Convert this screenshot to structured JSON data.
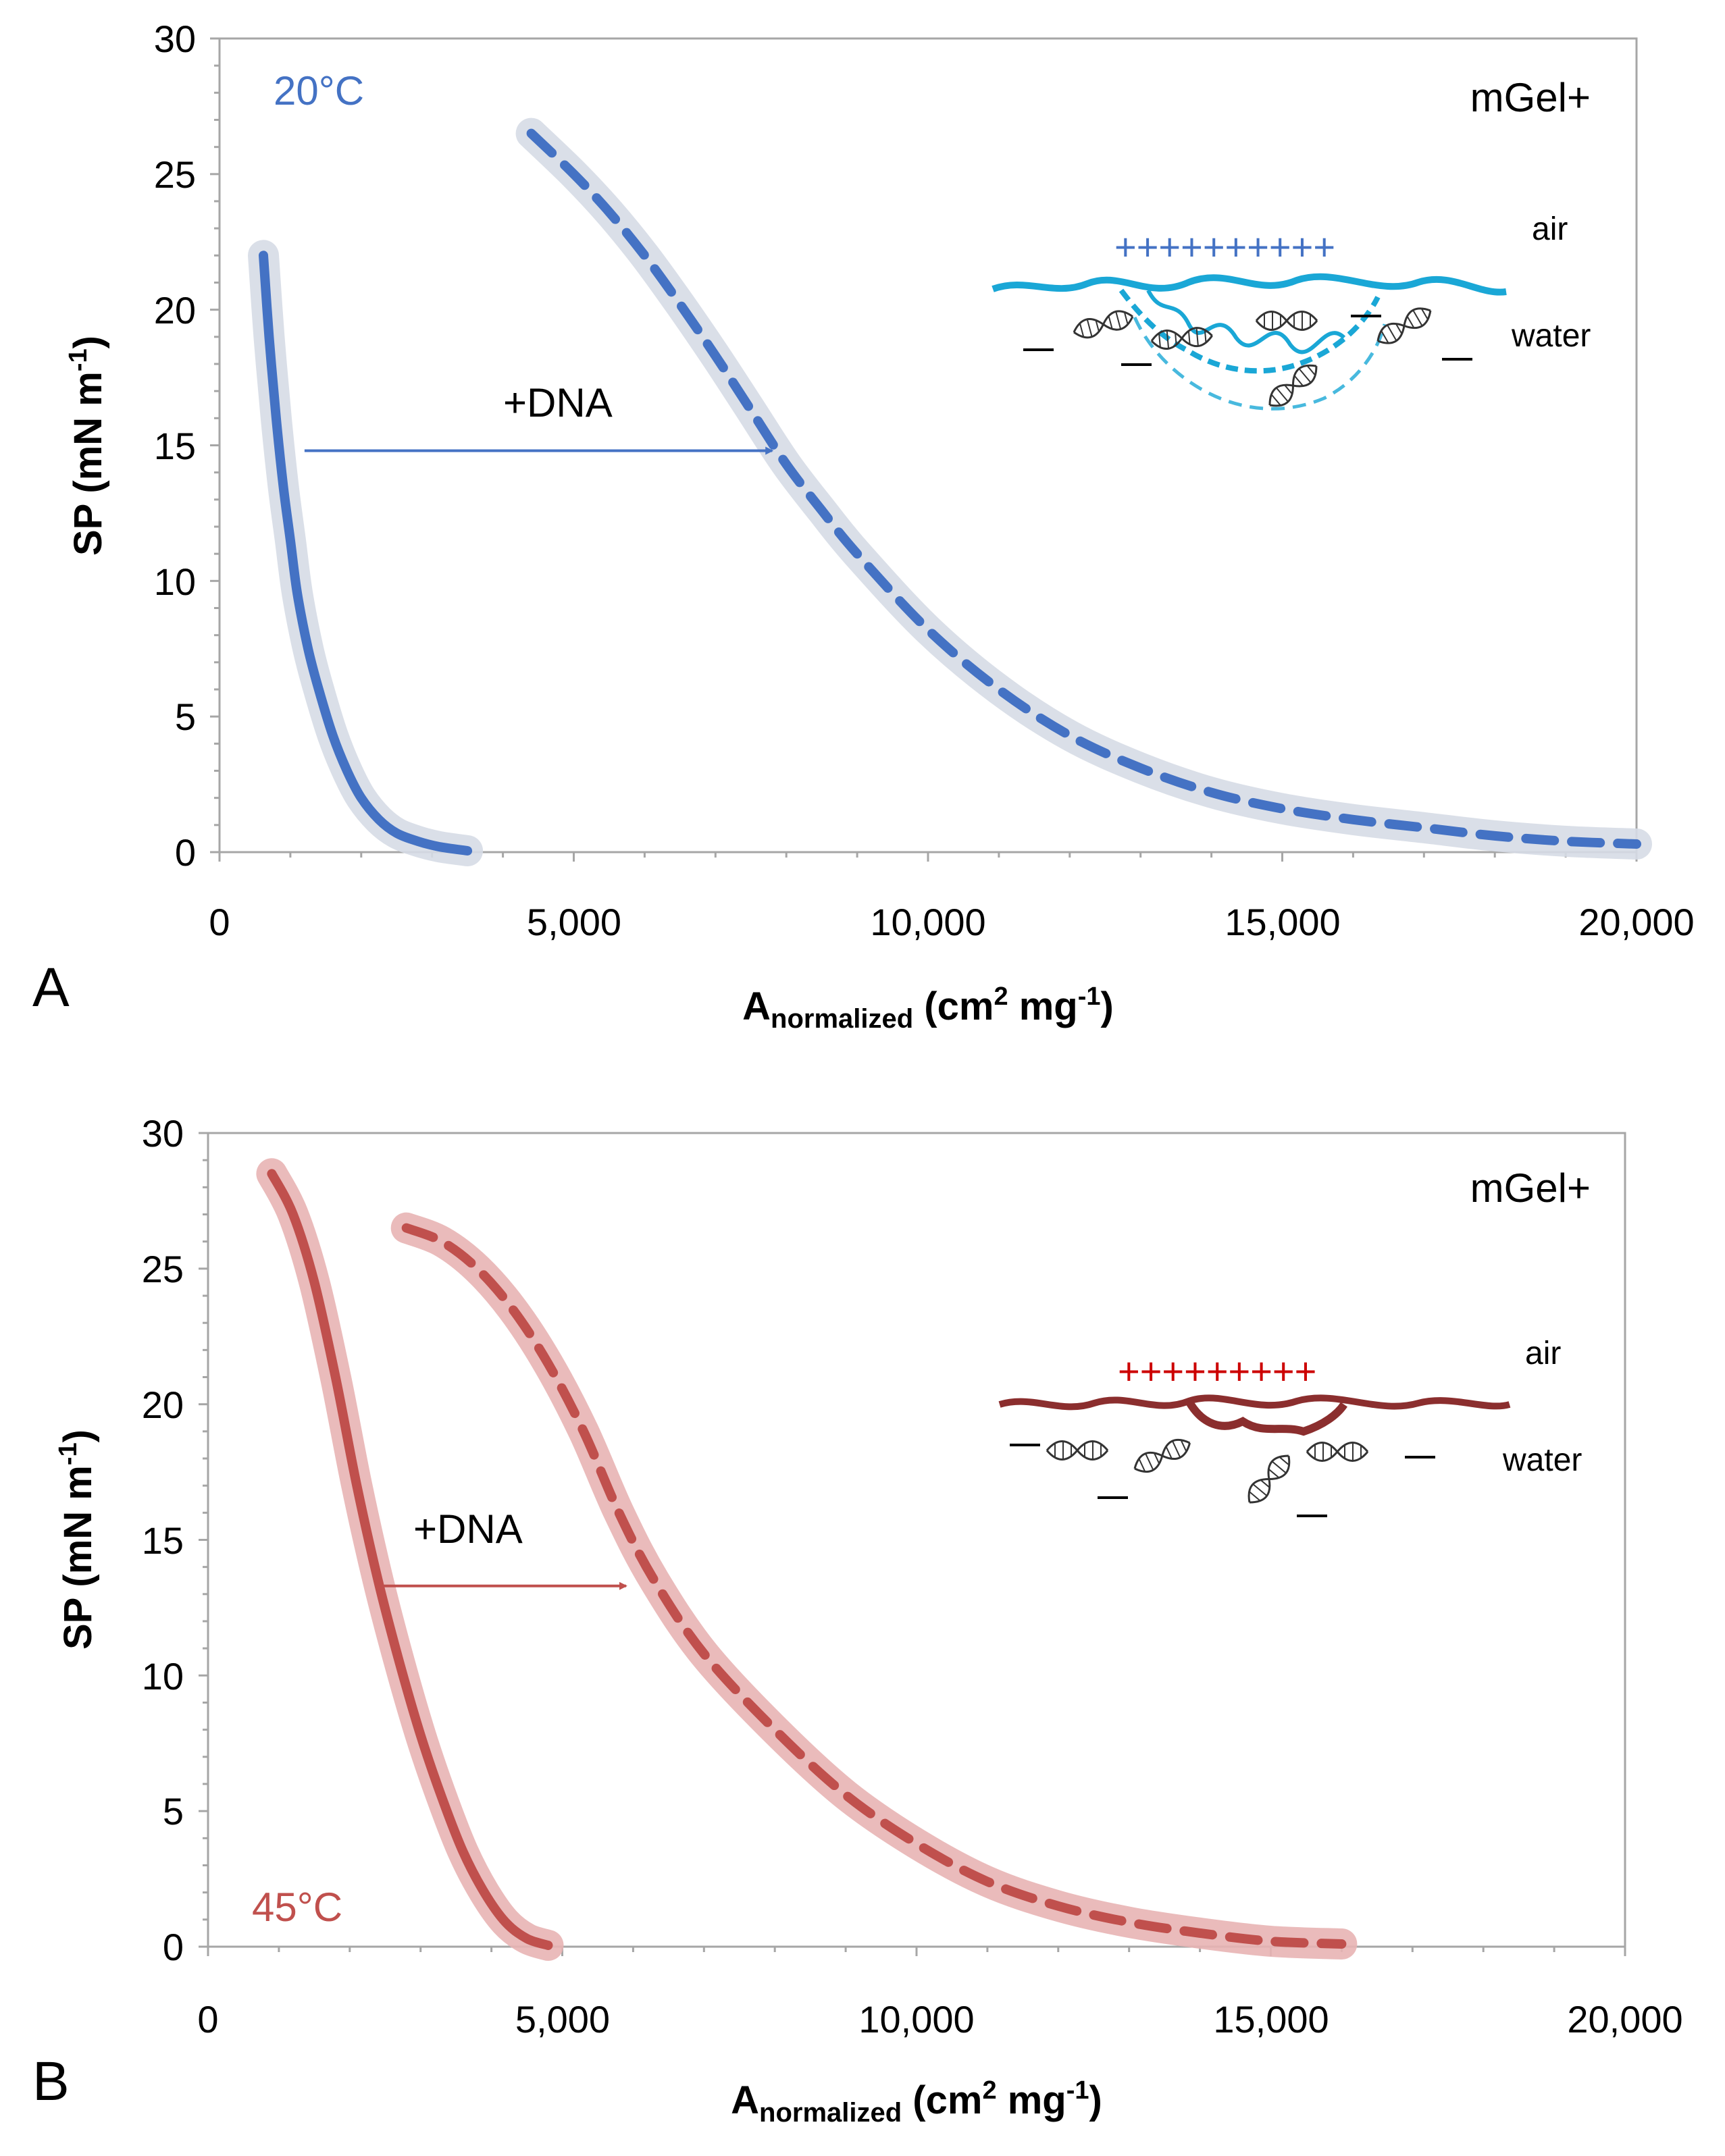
{
  "chart_data": [
    {
      "panel": "A",
      "type": "line",
      "temperature_label": "20°C",
      "series_label": "mGel+",
      "arrow_label": "+DNA",
      "plus_signs": "++++++++++",
      "air_label": "air",
      "water_label": "water",
      "xlabel": "A",
      "xlabel_sub": "normalized",
      "xlabel_unit": " (cm",
      "xlabel_sup": "2",
      "xlabel_unit2": " mg",
      "xlabel_sup2": "-1",
      "xlabel_close": ")",
      "ylabel": "SP (mN m",
      "ylabel_sup": "-1",
      "ylabel_close": ")",
      "xlim": [
        0,
        20000
      ],
      "ylim": [
        0,
        30
      ],
      "xticks": [
        "0",
        "5,000",
        "10,000",
        "15,000",
        "20,000"
      ],
      "yticks": [
        "0",
        "5",
        "10",
        "15",
        "20",
        "25",
        "30"
      ],
      "color": "#4472C4",
      "band_color": "#D6DCE5",
      "accent_color": "#1AA7D6",
      "arrow": {
        "from": [
          1200,
          14.8
        ],
        "to": [
          7800,
          14.8
        ]
      },
      "series": [
        {
          "name": "mGel+",
          "style": "solid",
          "x": [
            620,
            700,
            800,
            900,
            1000,
            1100,
            1250,
            1400,
            1600,
            1800,
            2000,
            2250,
            2500,
            2800,
            3100,
            3500
          ],
          "y": [
            22,
            19,
            16,
            13.5,
            11.5,
            9.5,
            7.5,
            6,
            4.3,
            3,
            2,
            1.2,
            0.7,
            0.4,
            0.2,
            0.05
          ]
        },
        {
          "name": "mGel+ +DNA",
          "style": "dashed",
          "x": [
            4400,
            5000,
            5500,
            6000,
            6500,
            7000,
            7500,
            8000,
            8500,
            9000,
            10000,
            11000,
            12000,
            13000,
            14000,
            15000,
            16000,
            17000,
            18000,
            19000,
            20000
          ],
          "y": [
            26.5,
            25,
            23.6,
            22,
            20.2,
            18.3,
            16.3,
            14.3,
            12.6,
            11,
            8.2,
            6,
            4.3,
            3.1,
            2.2,
            1.6,
            1.2,
            0.9,
            0.6,
            0.4,
            0.3
          ]
        }
      ]
    },
    {
      "panel": "B",
      "type": "line",
      "temperature_label": "45°C",
      "series_label": "mGel+",
      "arrow_label": "+DNA",
      "plus_signs": "+++++++++",
      "air_label": "air",
      "water_label": "water",
      "xlabel": "A",
      "xlabel_sub": "normalized",
      "xlabel_unit": " (cm",
      "xlabel_sup": "2",
      "xlabel_unit2": " mg",
      "xlabel_sup2": "-1",
      "xlabel_close": ")",
      "ylabel": "SP (mN m",
      "ylabel_sup": "-1",
      "ylabel_close": ")",
      "xlim": [
        0,
        20000
      ],
      "ylim": [
        0,
        30
      ],
      "xticks": [
        "0",
        "5,000",
        "10,000",
        "15,000",
        "20,000"
      ],
      "yticks": [
        "0",
        "5",
        "10",
        "15",
        "20",
        "25",
        "30"
      ],
      "color": "#C0504D",
      "band_color": "#E8B4B4",
      "accent_color": "#8B2E2E",
      "arrow": {
        "from": [
          2450,
          13.3
        ],
        "to": [
          5900,
          13.3
        ]
      },
      "series": [
        {
          "name": "mGel+",
          "style": "solid",
          "x": [
            900,
            1200,
            1500,
            1800,
            2100,
            2400,
            2700,
            3000,
            3300,
            3600,
            3900,
            4200,
            4500,
            4800
          ],
          "y": [
            28.5,
            27,
            24.5,
            21,
            17,
            13.5,
            10.5,
            7.8,
            5.5,
            3.5,
            2,
            0.9,
            0.3,
            0.05
          ]
        },
        {
          "name": "mGel+ +DNA",
          "style": "dashed",
          "x": [
            2800,
            3300,
            3800,
            4300,
            4800,
            5300,
            5800,
            6300,
            7000,
            8000,
            9000,
            10000,
            11000,
            12000,
            13000,
            14000,
            15000,
            16000
          ],
          "y": [
            26.5,
            26,
            25,
            23.5,
            21.5,
            19,
            16,
            13.5,
            10.8,
            8,
            5.6,
            3.8,
            2.4,
            1.5,
            0.9,
            0.5,
            0.2,
            0.1
          ]
        }
      ]
    }
  ]
}
